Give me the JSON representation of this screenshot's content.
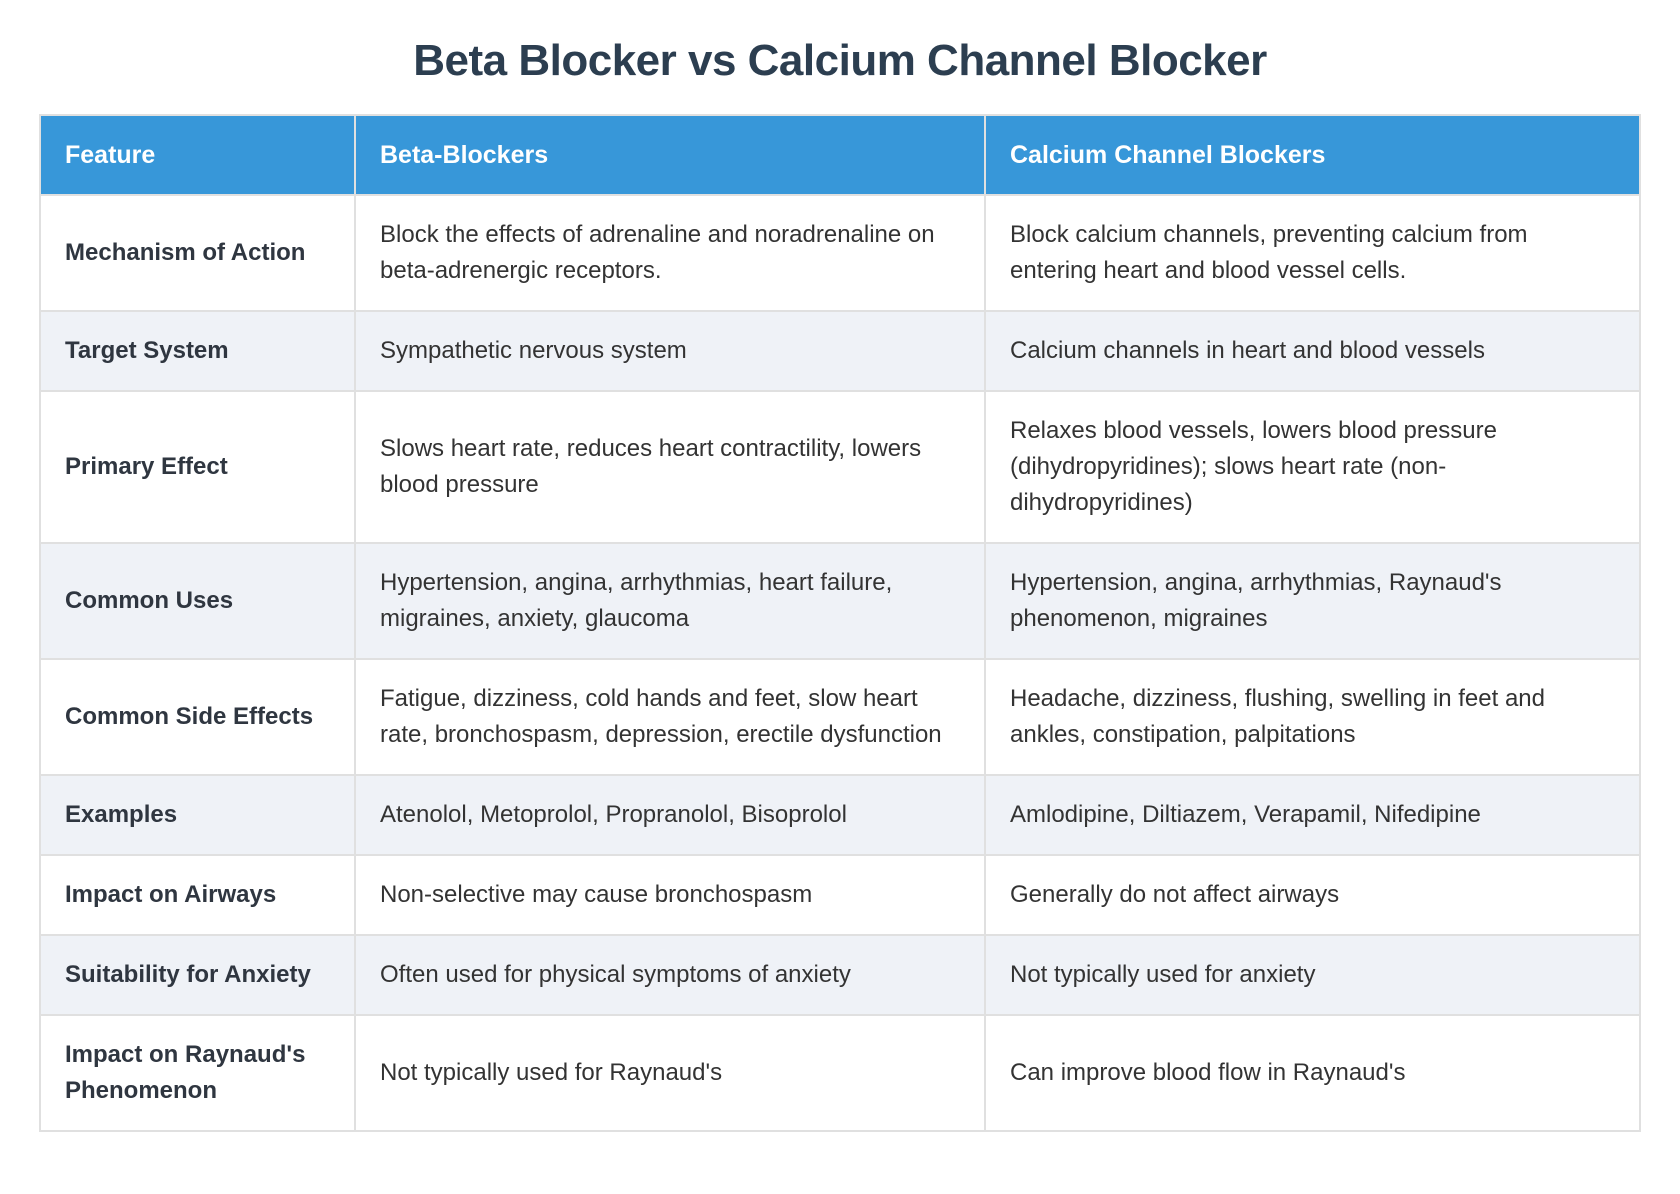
{
  "page": {
    "title": "Beta Blocker vs Calcium Channel Blocker"
  },
  "colors": {
    "header_bg": "#3797d9",
    "header_text": "#ffffff",
    "title_text": "#2c3e50",
    "stripe_bg": "#eff2f7",
    "border": "#e0e0e0",
    "body_text": "#333333",
    "label_text": "#2f3640",
    "page_bg": "#ffffff"
  },
  "table": {
    "columns": [
      "Feature",
      "Beta-Blockers",
      "Calcium Channel Blockers"
    ],
    "rows": [
      {
        "feature": "Mechanism of Action",
        "beta": "Block the effects of adrenaline and noradrenaline on beta-adrenergic receptors.",
        "ccb": "Block calcium channels, preventing calcium from entering heart and blood vessel cells."
      },
      {
        "feature": "Target System",
        "beta": "Sympathetic nervous system",
        "ccb": "Calcium channels in heart and blood vessels"
      },
      {
        "feature": "Primary Effect",
        "beta": "Slows heart rate, reduces heart contractility, lowers blood pressure",
        "ccb": "Relaxes blood vessels, lowers blood pressure (dihydropyridines); slows heart rate (non-dihydropyridines)"
      },
      {
        "feature": "Common Uses",
        "beta": "Hypertension, angina, arrhythmias, heart failure, migraines, anxiety, glaucoma",
        "ccb": "Hypertension, angina, arrhythmias, Raynaud's phenomenon, migraines"
      },
      {
        "feature": "Common Side Effects",
        "beta": "Fatigue, dizziness, cold hands and feet, slow heart rate, bronchospasm, depression, erectile dysfunction",
        "ccb": "Headache, dizziness, flushing, swelling in feet and ankles, constipation, palpitations"
      },
      {
        "feature": "Examples",
        "beta": "Atenolol, Metoprolol, Propranolol, Bisoprolol",
        "ccb": "Amlodipine, Diltiazem, Verapamil, Nifedipine"
      },
      {
        "feature": "Impact on Airways",
        "beta": "Non-selective may cause bronchospasm",
        "ccb": "Generally do not affect airways"
      },
      {
        "feature": "Suitability for Anxiety",
        "beta": "Often used for physical symptoms of anxiety",
        "ccb": "Not typically used for anxiety"
      },
      {
        "feature": "Impact on Raynaud's Phenomenon",
        "beta": "Not typically used for Raynaud's",
        "ccb": "Can improve blood flow in Raynaud's"
      }
    ]
  }
}
